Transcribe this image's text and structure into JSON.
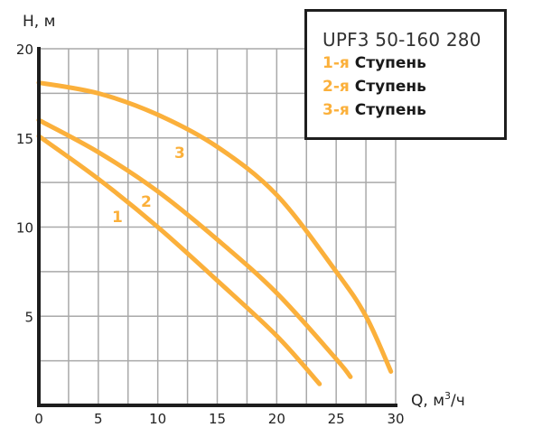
{
  "chart_data": {
    "type": "line",
    "title": "UPF3 50-160 280",
    "xlabel": "Q, м³/ч",
    "ylabel": "H, м",
    "xlim": [
      0,
      30
    ],
    "ylim": [
      0,
      20
    ],
    "x_ticks": [
      0,
      5,
      10,
      15,
      20,
      25,
      30
    ],
    "y_ticks": [
      5,
      10,
      15,
      20
    ],
    "grid": true,
    "grid_step_x": 2.5,
    "grid_step_y": 2.5,
    "legend_position": "top-right",
    "series": [
      {
        "name": "1-я Ступень",
        "label": "1",
        "color": "#FBB03B",
        "points": [
          [
            0,
            15.1
          ],
          [
            5,
            12.7
          ],
          [
            10,
            10.0
          ],
          [
            15,
            7.0
          ],
          [
            20,
            3.9
          ],
          [
            23.6,
            1.2
          ]
        ]
      },
      {
        "name": "2-я Ступень",
        "label": "2",
        "color": "#FBB03B",
        "points": [
          [
            0,
            16.0
          ],
          [
            5,
            14.2
          ],
          [
            10,
            12.0
          ],
          [
            15,
            9.3
          ],
          [
            20,
            6.3
          ],
          [
            25,
            2.6
          ],
          [
            26.2,
            1.6
          ]
        ]
      },
      {
        "name": "3-я Ступень",
        "label": "3",
        "color": "#FBB03B",
        "points": [
          [
            0,
            18.1
          ],
          [
            5,
            17.5
          ],
          [
            10,
            16.3
          ],
          [
            15,
            14.5
          ],
          [
            20,
            11.8
          ],
          [
            25,
            7.5
          ],
          [
            27.5,
            5.0
          ],
          [
            29.6,
            1.9
          ]
        ]
      }
    ]
  },
  "legend": {
    "title": "UPF3 50-160 280",
    "items": [
      {
        "num": "1-я",
        "text": "Ступень"
      },
      {
        "num": "2-я",
        "text": "Ступень"
      },
      {
        "num": "3-я",
        "text": "Ступень"
      }
    ]
  },
  "axes": {
    "y_title": "H, м",
    "x_title_q": "Q, м",
    "x_title_sup": "3",
    "x_title_unit": "/ч",
    "x_tick_labels": [
      "0",
      "5",
      "10",
      "15",
      "20",
      "25",
      "30"
    ],
    "y_tick_labels": [
      "5",
      "10",
      "15",
      "20"
    ]
  },
  "curve_labels": [
    "1",
    "2",
    "3"
  ]
}
